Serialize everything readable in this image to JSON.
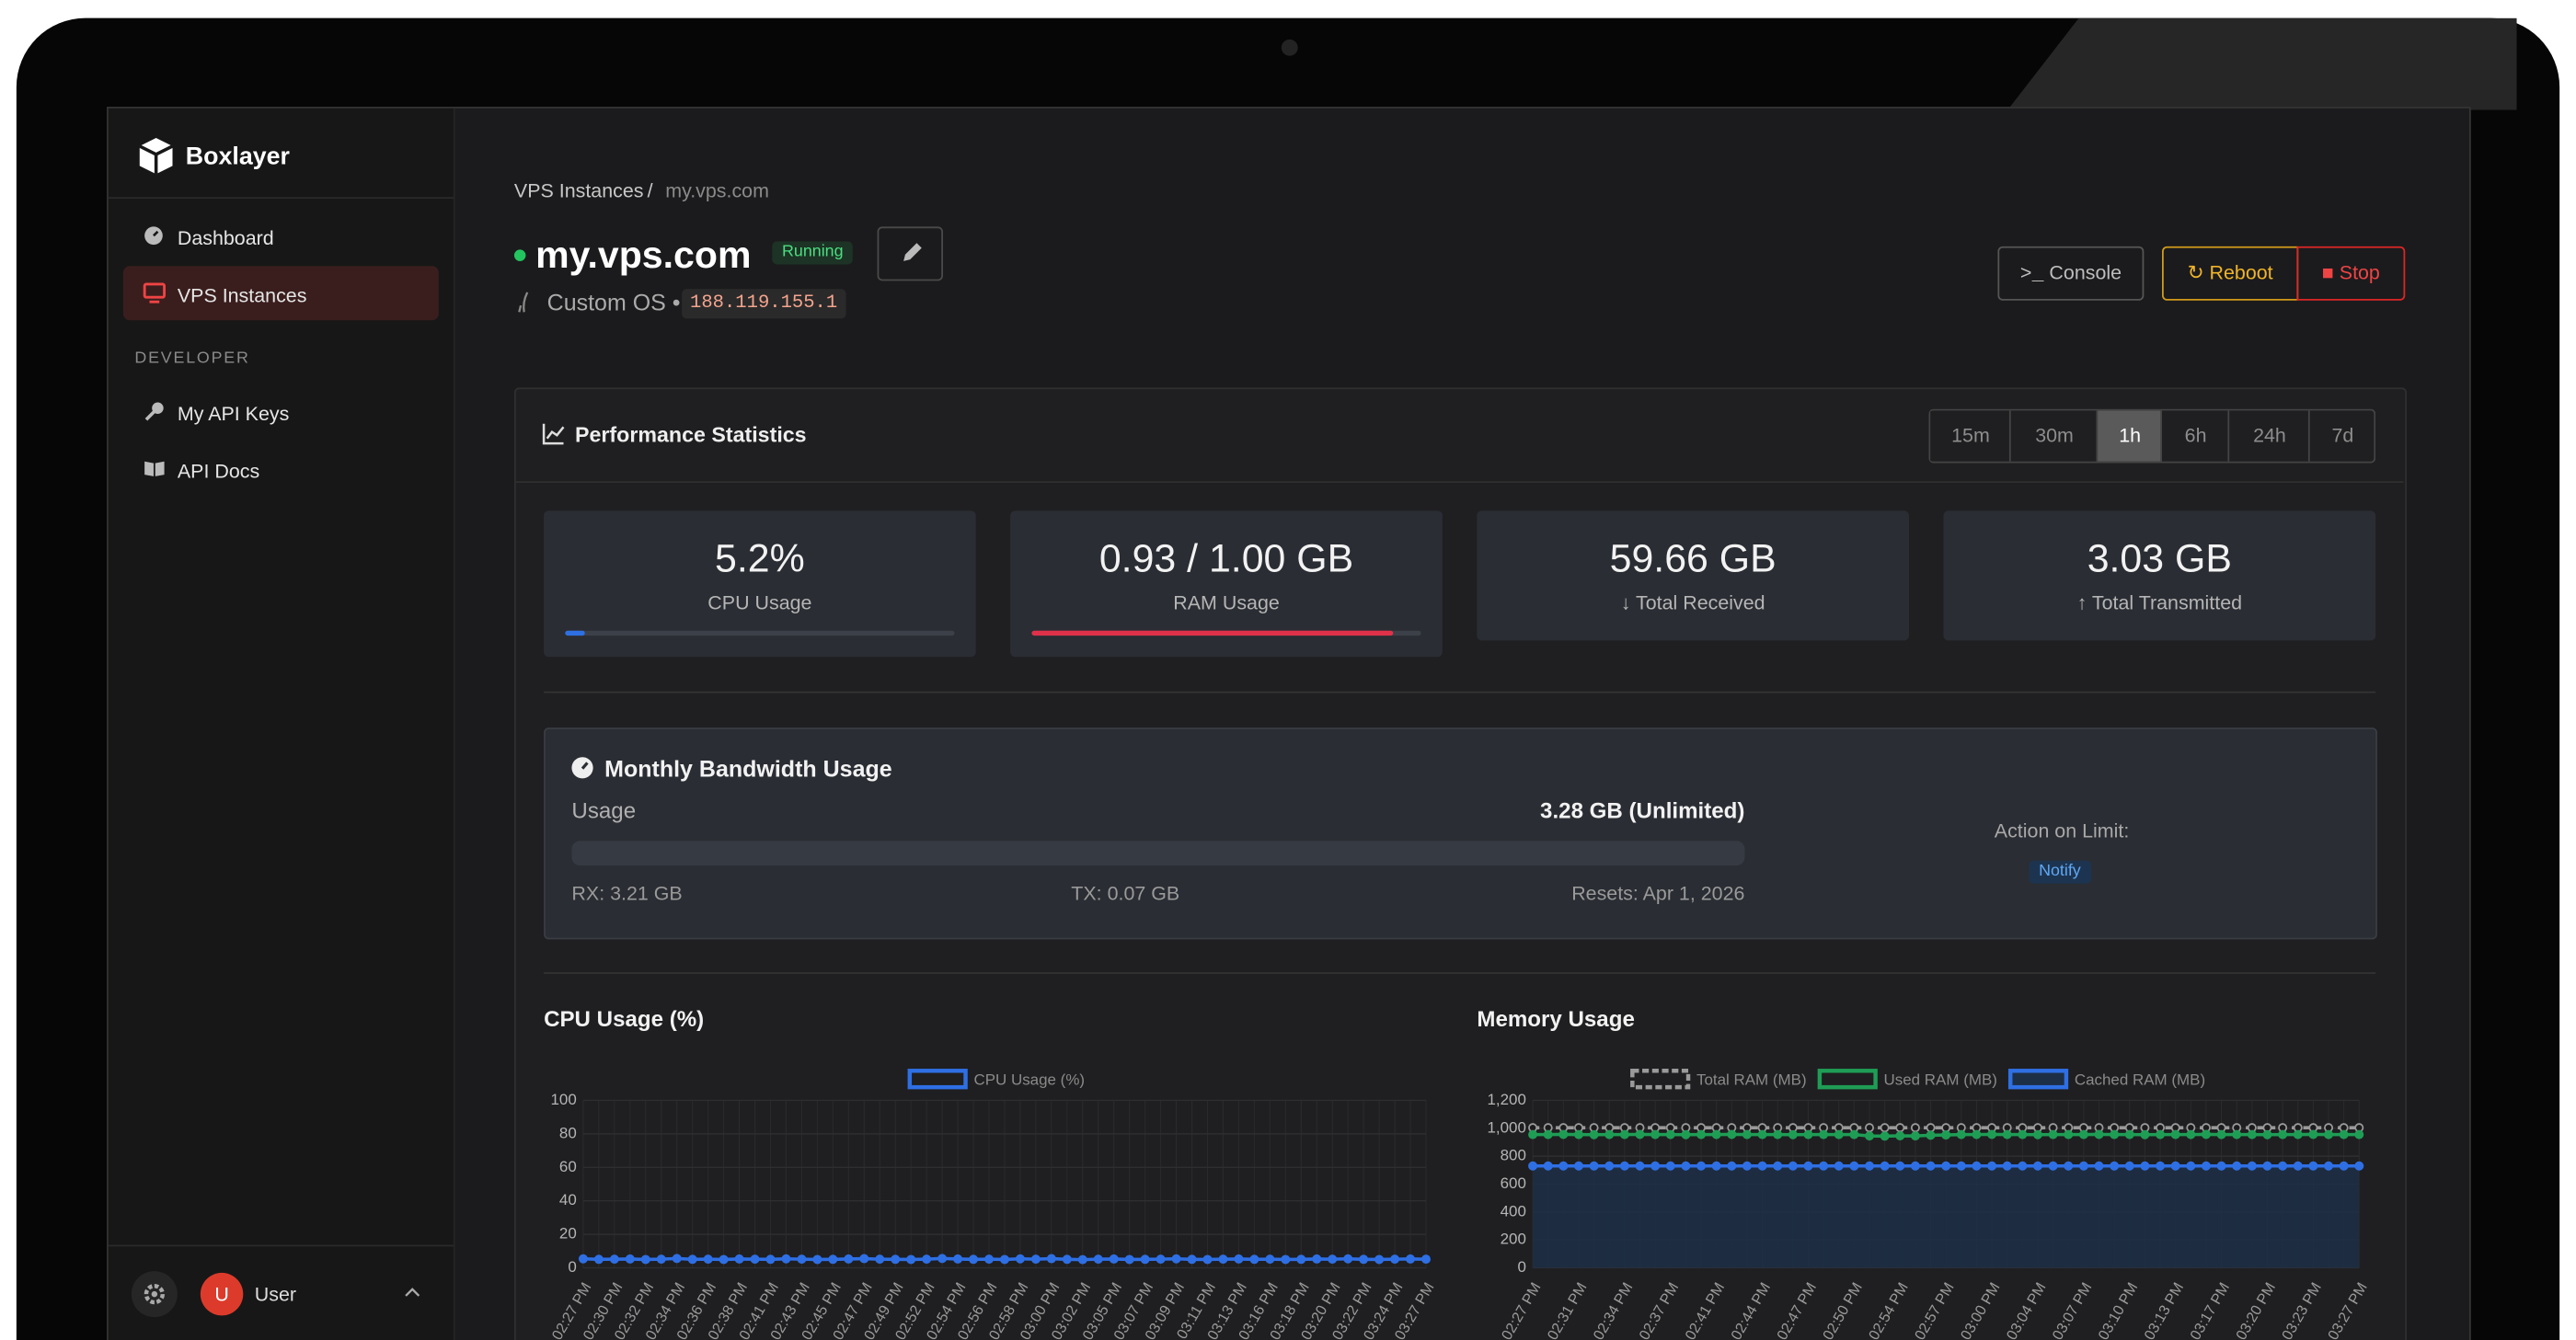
{
  "app": {
    "brand": "Boxlayer"
  },
  "sidebar": {
    "nav": [
      "Dashboard",
      "VPS Instances"
    ],
    "section": "DEVELOPER",
    "dev_nav": [
      "My API Keys",
      "API Docs"
    ],
    "user": {
      "avatar": "U",
      "name": "User"
    }
  },
  "breadcrumb": [
    "VPS Instances",
    "/",
    "my.vps.com"
  ],
  "instance": {
    "name": "my.vps.com",
    "status": "Running",
    "os": "Custom OS •",
    "ip": "188.119.155.1"
  },
  "actions": [
    "Console",
    "Reboot",
    "Stop"
  ],
  "performance": {
    "title": "Performance Statistics",
    "ranges": [
      "15m",
      "30m",
      "1h",
      "6h",
      "24h",
      "7d"
    ],
    "active_range": 2,
    "stats": [
      {
        "value": "5.2%",
        "label": "CPU Usage",
        "percent": 5.2
      },
      {
        "value": "0.93 / 1.00 GB",
        "label": "RAM Usage",
        "percent": 93
      },
      {
        "value": "59.66 GB",
        "label": "Total Received"
      },
      {
        "value": "3.03 GB",
        "label": "Total Transmitted"
      }
    ]
  },
  "bandwidth": {
    "title": "Monthly Bandwidth Usage",
    "usage_label": "Usage",
    "usage": "3.28 GB (Unlimited)",
    "rx": "RX: 3.21 GB",
    "tx": "TX: 0.07 GB",
    "resets": "Resets: Apr 1, 2026",
    "action_label": "Action on Limit:",
    "action": "Notify"
  },
  "chart_data": [
    {
      "type": "line",
      "title": "CPU Usage (%)",
      "ylim": [
        0,
        100
      ],
      "yticks": [
        0,
        20,
        40,
        60,
        80,
        100
      ],
      "grid": true,
      "categories": [
        "02:27 PM",
        null,
        "02:30 PM",
        null,
        "02:32 PM",
        null,
        "02:34 PM",
        null,
        "02:36 PM",
        null,
        "02:38 PM",
        null,
        "02:41 PM",
        null,
        "02:43 PM",
        null,
        "02:45 PM",
        null,
        "02:47 PM",
        null,
        "02:49 PM",
        null,
        "02:52 PM",
        null,
        "02:54 PM",
        null,
        "02:56 PM",
        null,
        "02:58 PM",
        null,
        "03:00 PM",
        null,
        "03:02 PM",
        null,
        "03:05 PM",
        null,
        "03:07 PM",
        null,
        "03:09 PM",
        null,
        "03:11 PM",
        null,
        "03:13 PM",
        null,
        "03:16 PM",
        null,
        "03:18 PM",
        null,
        "03:20 PM",
        null,
        "03:22 PM",
        null,
        "03:24 PM",
        null,
        "03:27 PM"
      ],
      "series": [
        {
          "name": "CPU Usage (%)",
          "color": "#2f6fe4",
          "values": [
            5.4,
            5.1,
            5.2,
            5.3,
            5.0,
            5.2,
            5.6,
            5.1,
            5.2,
            5.0,
            5.3,
            5.2,
            5.1,
            5.4,
            5.2,
            5.0,
            5.1,
            5.3,
            5.5,
            5.2,
            5.1,
            5.0,
            5.2,
            5.6,
            5.3,
            5.1,
            5.2,
            5.0,
            5.4,
            5.2,
            5.5,
            5.1,
            4.9,
            5.2,
            5.3,
            5.0,
            5.1,
            5.2,
            5.4,
            5.1,
            5.0,
            5.2,
            5.3,
            5.1,
            5.2,
            5.0,
            5.1,
            5.3,
            5.2,
            5.4,
            5.1,
            5.0,
            5.2,
            5.3,
            5.2
          ]
        }
      ]
    },
    {
      "type": "line",
      "title": "Memory Usage",
      "ylim": [
        0,
        1200
      ],
      "yticks": [
        0,
        200,
        400,
        600,
        800,
        {
          "value": 1000,
          "label": "1,000"
        },
        {
          "value": 1200,
          "label": "1,200"
        }
      ],
      "grid": true,
      "categories": [
        "02:27 PM",
        null,
        null,
        "02:31 PM",
        null,
        null,
        "02:34 PM",
        null,
        null,
        "02:37 PM",
        null,
        null,
        "02:41 PM",
        null,
        null,
        "02:44 PM",
        null,
        null,
        "02:47 PM",
        null,
        null,
        "02:50 PM",
        null,
        null,
        "02:54 PM",
        null,
        null,
        "02:57 PM",
        null,
        null,
        "03:00 PM",
        null,
        null,
        "03:04 PM",
        null,
        null,
        "03:07 PM",
        null,
        null,
        "03:10 PM",
        null,
        null,
        "03:13 PM",
        null,
        null,
        "03:17 PM",
        null,
        null,
        "03:20 PM",
        null,
        null,
        "03:23 PM",
        null,
        null,
        "03:27 PM"
      ],
      "series": [
        {
          "name": "Total RAM (MB)",
          "color": "#9a9a9a",
          "dash": true,
          "values": [
            1004,
            1004,
            1004,
            1004,
            1004,
            1004,
            1004,
            1004,
            1004,
            1004,
            1004,
            1004,
            1004,
            1004,
            1004,
            1004,
            1004,
            1004,
            1004,
            1004,
            1004,
            1004,
            1004,
            1004,
            1004,
            1004,
            1004,
            1004,
            1004,
            1004,
            1004,
            1004,
            1004,
            1004,
            1004,
            1004,
            1004,
            1004,
            1004,
            1004,
            1004,
            1004,
            1004,
            1004,
            1004,
            1004,
            1004,
            1004,
            1004,
            1004,
            1004,
            1004,
            1004,
            1004,
            1004
          ]
        },
        {
          "name": "Used RAM (MB)",
          "color": "#1f9d55",
          "values": [
            955,
            955,
            956,
            955,
            954,
            955,
            955,
            956,
            955,
            955,
            954,
            955,
            955,
            956,
            955,
            955,
            955,
            954,
            955,
            955,
            955,
            955,
            945,
            944,
            946,
            945,
            950,
            952,
            955,
            955,
            956,
            955,
            955,
            954,
            955,
            955,
            955,
            956,
            955,
            955,
            954,
            955,
            955,
            955,
            956,
            955,
            955,
            955,
            954,
            955,
            955,
            956,
            955,
            955,
            955
          ]
        },
        {
          "name": "Cached RAM (MB)",
          "color": "#2f6fe4",
          "fill": "#1d2f47",
          "values": [
            730,
            730,
            730,
            730,
            730,
            730,
            730,
            730,
            730,
            730,
            730,
            730,
            730,
            730,
            730,
            730,
            730,
            730,
            730,
            730,
            730,
            730,
            730,
            730,
            730,
            730,
            730,
            730,
            730,
            730,
            730,
            730,
            730,
            730,
            730,
            730,
            730,
            730,
            730,
            730,
            730,
            730,
            730,
            730,
            730,
            730,
            730,
            730,
            730,
            730,
            730,
            730,
            730,
            730,
            730
          ]
        }
      ]
    }
  ]
}
